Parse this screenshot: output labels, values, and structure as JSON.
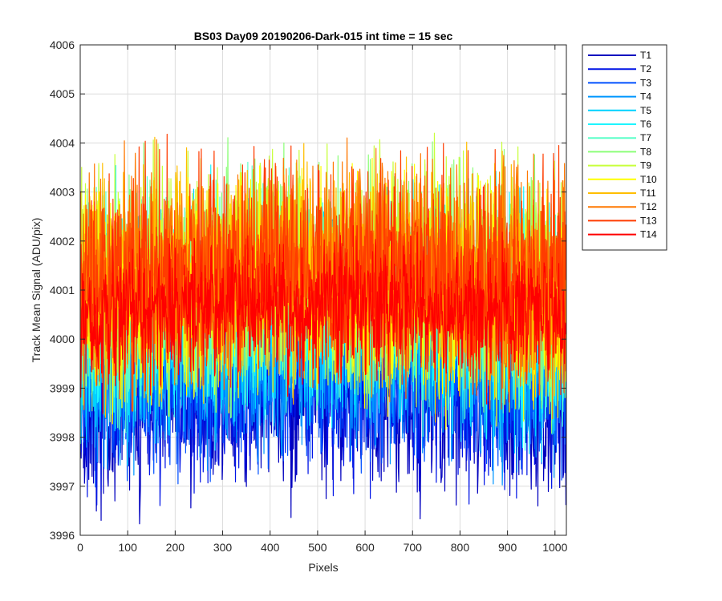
{
  "chart_data": {
    "type": "line",
    "title": "BS03 Day09 20190206-Dark-015 int time = 15 sec",
    "xlabel": "Pixels",
    "ylabel": "Track Mean Signal (ADU/pix)",
    "xlim": [
      0,
      1024
    ],
    "ylim": [
      3996,
      4006
    ],
    "xticks": [
      0,
      100,
      200,
      300,
      400,
      500,
      600,
      700,
      800,
      900,
      1000
    ],
    "yticks": [
      3996,
      3997,
      3998,
      3999,
      4000,
      4001,
      4002,
      4003,
      4004,
      4005,
      4006
    ],
    "grid": true,
    "legend_position": "outside-top-right",
    "n_points": 1024,
    "series": [
      {
        "name": "T1",
        "color": "#0000bf",
        "mean": 3999.0,
        "spread": 1.1
      },
      {
        "name": "T2",
        "color": "#0014e6",
        "mean": 3999.3,
        "spread": 1.1
      },
      {
        "name": "T3",
        "color": "#0050ff",
        "mean": 3999.6,
        "spread": 1.1
      },
      {
        "name": "T4",
        "color": "#0096ff",
        "mean": 3999.9,
        "spread": 1.1
      },
      {
        "name": "T5",
        "color": "#00d2ff",
        "mean": 4000.4,
        "spread": 1.2
      },
      {
        "name": "T6",
        "color": "#1ef5ff",
        "mean": 4000.7,
        "spread": 1.2
      },
      {
        "name": "T7",
        "color": "#5cffc8",
        "mean": 4001.0,
        "spread": 1.2
      },
      {
        "name": "T8",
        "color": "#8cff78",
        "mean": 4001.3,
        "spread": 1.2
      },
      {
        "name": "T9",
        "color": "#c8ff3c",
        "mean": 4001.5,
        "spread": 1.2
      },
      {
        "name": "T10",
        "color": "#ffff00",
        "mean": 4001.1,
        "spread": 1.2
      },
      {
        "name": "T11",
        "color": "#ffbe00",
        "mean": 4001.3,
        "spread": 1.2
      },
      {
        "name": "T12",
        "color": "#ff7800",
        "mean": 4001.5,
        "spread": 1.2
      },
      {
        "name": "T13",
        "color": "#ff3c00",
        "mean": 4001.4,
        "spread": 1.2
      },
      {
        "name": "T14",
        "color": "#ff0000",
        "mean": 4000.7,
        "spread": 0.75
      }
    ]
  }
}
